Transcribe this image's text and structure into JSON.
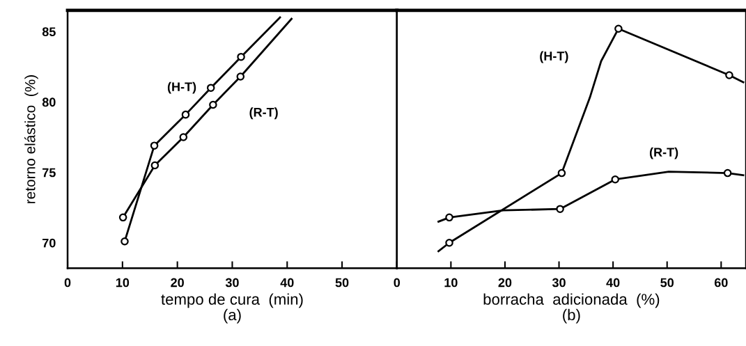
{
  "chart_data": [
    {
      "type": "line",
      "xlabel": "tempo de cura  (min)\n(a)",
      "ylabel": "retorno elástico  (%)",
      "xlim": [
        0,
        60
      ],
      "ylim": [
        68.2,
        86.5
      ],
      "xticks": [
        0,
        10,
        20,
        30,
        40,
        50
      ],
      "yticks": [
        70,
        75,
        80,
        85
      ],
      "grid": false,
      "legend": false,
      "series": [
        {
          "name": "(H-T)",
          "color": "#000000",
          "marker": "none",
          "x": [
            10.4,
            15.8,
            21.5,
            26.1,
            31.6,
            38.7
          ],
          "values": [
            70.1,
            76.9,
            79.1,
            81.0,
            83.2,
            86.0
          ]
        },
        {
          "name": "(R-T)",
          "color": "#000000",
          "marker": "none",
          "x": [
            10.1,
            15.9,
            21.1,
            26.5,
            31.5,
            40.8
          ],
          "values": [
            71.8,
            75.5,
            77.5,
            79.8,
            81.8,
            85.9
          ]
        },
        {
          "type": "scatter",
          "color": "#000000",
          "marker": "circle",
          "x": [
            10.4,
            15.8,
            21.5,
            26.1,
            31.6
          ],
          "values": [
            70.1,
            76.9,
            79.1,
            81.0,
            83.2
          ]
        },
        {
          "type": "scatter",
          "color": "#000000",
          "marker": "circle",
          "x": [
            10.1,
            15.9,
            21.1,
            26.5,
            31.5
          ],
          "values": [
            71.8,
            75.5,
            77.5,
            79.8,
            81.8
          ]
        }
      ]
    },
    {
      "type": "line",
      "xlabel": "borracha  adicionada  (%)\n(b)",
      "xlim": [
        0,
        64.6
      ],
      "ylim": [
        68.2,
        86.5
      ],
      "xticks": [
        0,
        10,
        20,
        30,
        40,
        50,
        60
      ],
      "yticks": [
        70,
        75,
        80,
        85
      ],
      "tick_labels": "x",
      "grid": false,
      "legend": false,
      "series": [
        {
          "name": "(H-T)",
          "color": "#000000",
          "marker": "none",
          "x": [
            7.7,
            9.7,
            30.5,
            35.7,
            37.8,
            41.0,
            61.5,
            64.1
          ],
          "values": [
            69.4,
            70.0,
            74.95,
            80.3,
            82.9,
            85.2,
            81.9,
            81.4
          ]
        },
        {
          "name": "(R-T)",
          "color": "#000000",
          "marker": "none",
          "x": [
            7.7,
            9.7,
            19.7,
            30.2,
            40.4,
            50.3,
            61.2,
            64.1
          ],
          "values": [
            71.5,
            71.8,
            72.3,
            72.4,
            74.5,
            75.05,
            74.95,
            74.8
          ]
        },
        {
          "type": "scatter",
          "color": "#000000",
          "marker": "circle",
          "x": [
            9.7,
            30.5,
            41.0,
            61.5
          ],
          "values": [
            70.0,
            74.95,
            85.2,
            81.9
          ]
        },
        {
          "type": "scatter",
          "color": "#000000",
          "marker": "circle",
          "x": [
            9.7,
            30.2,
            40.4,
            61.2
          ],
          "values": [
            71.8,
            72.4,
            74.5,
            74.95
          ]
        }
      ]
    }
  ]
}
